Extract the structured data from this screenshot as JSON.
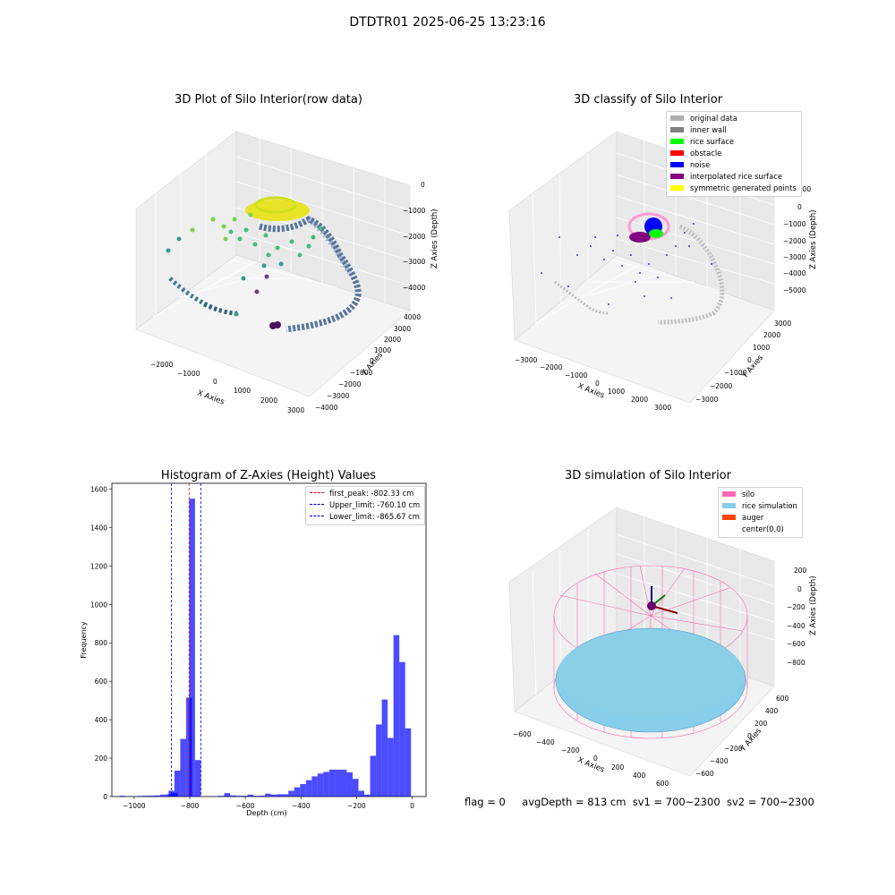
{
  "suptitle": "DTDTR01 2025-06-25 13:23:16",
  "panel1": {
    "title": "3D Plot of Silo Interior(row data)",
    "xlabel": "X Axies",
    "ylabel": "Y Axies",
    "zlabel": "Z Axies (Depth)",
    "xticks": [
      "−2000",
      "−1000",
      "0",
      "1000",
      "2000",
      "3000"
    ],
    "yticks": [
      "−4000",
      "−3000",
      "−2000",
      "−1000",
      "0",
      "1000",
      "2000",
      "3000",
      "4000"
    ],
    "zticks": [
      "0",
      "−1000",
      "−2000",
      "−3000",
      "−4000"
    ]
  },
  "panel2": {
    "title": "3D classify of Silo Interior",
    "xlabel": "X Axies",
    "ylabel": "Y Axies",
    "zlabel": "Z Axies (Depth)",
    "xticks": [
      "−3000",
      "−2000",
      "−1000",
      "0",
      "1000",
      "2000",
      "3000"
    ],
    "yticks": [
      "−3000",
      "−2000",
      "−1000",
      "0",
      "1000",
      "2000",
      "3000"
    ],
    "zticks": [
      "1000",
      "0",
      "−1000",
      "−2000",
      "−3000",
      "−4000",
      "−5000"
    ],
    "legend": [
      {
        "label": "original data",
        "color": "#b0b0b0"
      },
      {
        "label": "inner wall",
        "color": "#808080"
      },
      {
        "label": "rice surface",
        "color": "#00ff00"
      },
      {
        "label": "obstacle",
        "color": "#ff0000"
      },
      {
        "label": "noise",
        "color": "#0000ff"
      },
      {
        "label": "interpolated rice surface",
        "color": "#800080"
      },
      {
        "label": "symmetric generated points",
        "color": "#ffff00"
      }
    ]
  },
  "panel3": {
    "title": "3D simulation of Silo Interior",
    "xlabel": "X Axies",
    "ylabel": "Y Axies",
    "zlabel": "Z Axies (Depth)",
    "xticks": [
      "−600",
      "−400",
      "−200",
      "0",
      "200",
      "400",
      "600"
    ],
    "yticks": [
      "−600",
      "−400",
      "−200",
      "0",
      "200",
      "400",
      "600"
    ],
    "zticks": [
      "200",
      "0",
      "−200",
      "−400",
      "−600",
      "−800"
    ],
    "legend": [
      {
        "label": "silo",
        "color": "#ff69b4"
      },
      {
        "label": "rice simulation",
        "color": "#87ceeb"
      },
      {
        "label": "auger",
        "color": "#ff4500"
      },
      {
        "label": "center(0,0)",
        "color": ""
      }
    ]
  },
  "chart_data": {
    "type": "bar",
    "title": "Histogram of Z-Axies (Height) Values",
    "xlabel": "Depth (cm)",
    "ylabel": "Frequency",
    "xlim": [
      -1080,
      50
    ],
    "ylim": [
      0,
      1630
    ],
    "x_ticks": [
      -1000,
      -800,
      -600,
      -400,
      -200,
      0
    ],
    "y_ticks": [
      0,
      200,
      400,
      600,
      800,
      1000,
      1200,
      1400,
      1600
    ],
    "bar_color": "#0000ff",
    "bin_width": 21,
    "bins": [
      [
        -1053,
        4
      ],
      [
        -1032,
        0
      ],
      [
        -1011,
        0
      ],
      [
        -990,
        3
      ],
      [
        -969,
        4
      ],
      [
        -948,
        5
      ],
      [
        -927,
        6
      ],
      [
        -906,
        10
      ],
      [
        -885,
        12
      ],
      [
        -864,
        20
      ],
      [
        -876,
        30
      ],
      [
        -855,
        135
      ],
      [
        -834,
        300
      ],
      [
        -813,
        515
      ],
      [
        -802,
        1550
      ],
      [
        -781,
        190
      ],
      [
        -760,
        0
      ],
      [
        -739,
        0
      ],
      [
        -718,
        2
      ],
      [
        -697,
        4
      ],
      [
        -676,
        18
      ],
      [
        -655,
        6
      ],
      [
        -634,
        4
      ],
      [
        -613,
        4
      ],
      [
        -592,
        10
      ],
      [
        -571,
        4
      ],
      [
        -550,
        5
      ],
      [
        -529,
        15
      ],
      [
        -508,
        10
      ],
      [
        -487,
        12
      ],
      [
        -466,
        12
      ],
      [
        -445,
        30
      ],
      [
        -424,
        48
      ],
      [
        -403,
        65
      ],
      [
        -382,
        85
      ],
      [
        -361,
        105
      ],
      [
        -340,
        120
      ],
      [
        -319,
        128
      ],
      [
        -298,
        140
      ],
      [
        -277,
        140
      ],
      [
        -256,
        140
      ],
      [
        -235,
        126
      ],
      [
        -214,
        92
      ],
      [
        -193,
        30
      ],
      [
        -172,
        10
      ],
      [
        -151,
        212
      ],
      [
        -130,
        375
      ],
      [
        -109,
        505
      ],
      [
        -88,
        305
      ],
      [
        -67,
        840
      ],
      [
        -46,
        700
      ],
      [
        -25,
        355
      ]
    ],
    "vlines": [
      {
        "label": "first_peak: -802.33 cm",
        "x": -802.33,
        "color": "#ff0000"
      },
      {
        "label": "Upper_limit: -760.10 cm",
        "x": -760.1,
        "color": "#0000cc"
      },
      {
        "label": "Lower_limit: -865.67 cm",
        "x": -865.67,
        "color": "#0000cc"
      }
    ]
  },
  "footer": {
    "flag": "flag = 0",
    "avg_depth": "avgDepth = 813 cm",
    "sv1": "sv1 = 700~2300",
    "sv2": "sv2 = 700~2300"
  }
}
